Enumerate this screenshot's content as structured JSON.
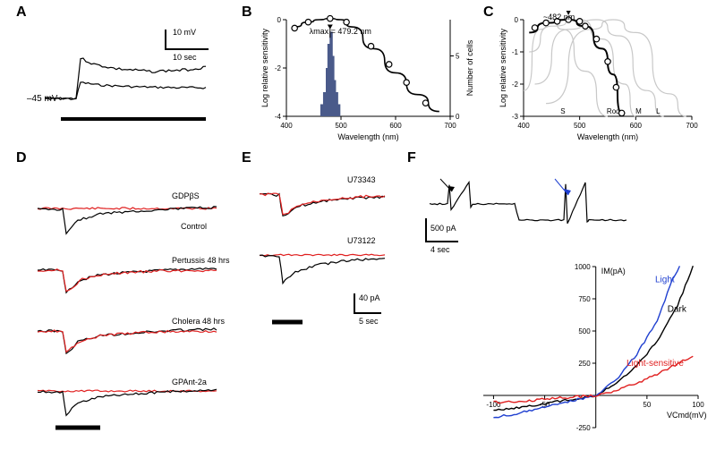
{
  "colors": {
    "black": "#000000",
    "red": "#e02020",
    "blue": "#2040d0",
    "gray": "#c8c8c8",
    "histbar": "#4a5a8a"
  },
  "labels": {
    "A": "A",
    "B": "B",
    "C": "C",
    "D": "D",
    "E": "E",
    "F": "F"
  },
  "panelA": {
    "resting": "–45 mV",
    "scale_v": "10 mV",
    "scale_t": "10 sec",
    "scale_bar_len": 48
  },
  "panelB": {
    "xlabel": "Wavelength (nm)",
    "ylabel_left": "Log relative sensitivity",
    "ylabel_right": "Number of cells",
    "lambda_text": "λmax = 479.2 nm",
    "xlim": [
      400,
      700
    ],
    "xticks": [
      400,
      500,
      600,
      700
    ],
    "ylim_left": [
      -4,
      0
    ],
    "yticks_left": [
      0,
      -2,
      -4
    ],
    "ylim_right": [
      0,
      8
    ],
    "yticks_right": [
      0,
      5
    ],
    "curve": [
      [
        415,
        -0.3
      ],
      [
        440,
        -0.1
      ],
      [
        460,
        0
      ],
      [
        480,
        0.05
      ],
      [
        500,
        0
      ],
      [
        520,
        -0.3
      ],
      [
        560,
        -1.2
      ],
      [
        600,
        -2.2
      ],
      [
        640,
        -3.1
      ],
      [
        680,
        -3.8
      ]
    ],
    "points": [
      [
        415,
        -0.35
      ],
      [
        440,
        -0.1
      ],
      [
        480,
        0.05
      ],
      [
        510,
        -0.1
      ],
      [
        555,
        -1.1
      ],
      [
        588,
        -1.85
      ],
      [
        620,
        -2.6
      ],
      [
        655,
        -3.45
      ]
    ],
    "hist_bins": [
      [
        465,
        1
      ],
      [
        470,
        2
      ],
      [
        475,
        4
      ],
      [
        478,
        6
      ],
      [
        482,
        7
      ],
      [
        485,
        5
      ],
      [
        488,
        3
      ],
      [
        492,
        2
      ],
      [
        496,
        1
      ]
    ]
  },
  "panelC": {
    "xlabel": "Wavelength (nm)",
    "ylabel": "Log relative sensitivity",
    "peak_text": "~482 nm",
    "xlim": [
      400,
      700
    ],
    "xticks": [
      400,
      500,
      600,
      700
    ],
    "ylim": [
      -3,
      0
    ],
    "yticks": [
      0,
      -1,
      -2,
      -3
    ],
    "templates": {
      "S": [
        [
          400,
          -2.2
        ],
        [
          430,
          -0.3
        ],
        [
          450,
          0
        ],
        [
          470,
          -0.3
        ],
        [
          510,
          -1.6
        ],
        [
          550,
          -3
        ]
      ],
      "Rod": [
        [
          410,
          -1
        ],
        [
          450,
          -0.2
        ],
        [
          500,
          0
        ],
        [
          540,
          -0.6
        ],
        [
          580,
          -2
        ],
        [
          600,
          -3
        ]
      ],
      "M": [
        [
          420,
          -2
        ],
        [
          480,
          -0.3
        ],
        [
          530,
          0
        ],
        [
          570,
          -0.5
        ],
        [
          620,
          -2.2
        ],
        [
          650,
          -3
        ]
      ],
      "L": [
        [
          440,
          -2.6
        ],
        [
          520,
          -0.3
        ],
        [
          560,
          0
        ],
        [
          600,
          -0.4
        ],
        [
          660,
          -2.3
        ],
        [
          690,
          -3
        ]
      ]
    },
    "data_points": [
      [
        420,
        -0.25
      ],
      [
        440,
        -0.1
      ],
      [
        460,
        -0.05
      ],
      [
        480,
        0
      ],
      [
        500,
        -0.05
      ],
      [
        510,
        -0.2
      ],
      [
        530,
        -0.6
      ],
      [
        550,
        -1.3
      ],
      [
        565,
        -2.1
      ],
      [
        575,
        -2.9
      ]
    ],
    "data_curve": [
      [
        410,
        -0.4
      ],
      [
        440,
        -0.1
      ],
      [
        480,
        0
      ],
      [
        510,
        -0.2
      ],
      [
        540,
        -0.9
      ],
      [
        560,
        -1.7
      ],
      [
        575,
        -2.9
      ]
    ],
    "bottom_labels": {
      "S": 470,
      "Rod": 560,
      "M": 605,
      "L": 640
    }
  },
  "panelD": {
    "traces": [
      {
        "label": "GDPβS",
        "ctrl": "Control",
        "red": true
      },
      {
        "label": "Pertussis 48 hrs",
        "red": true,
        "only": "red"
      },
      {
        "label": "Cholera 48 hrs",
        "red": true,
        "only": "red"
      },
      {
        "label": "GPAnt-2a",
        "red": true
      }
    ],
    "stim_bar_len": 50
  },
  "panelE": {
    "traces": [
      {
        "label": "U73343"
      },
      {
        "label": "U73122"
      }
    ],
    "scale_v": "40 pA",
    "scale_t": "5 sec",
    "stim_bar_len": 34
  },
  "panelF": {
    "scale_i": "500 pA",
    "scale_t": "4 sec",
    "iv": {
      "xlabel": "VCmd(mV)",
      "ylabel": "IM(pA)",
      "xlim": [
        -110,
        100
      ],
      "xticks": [
        -100,
        -50,
        50,
        100
      ],
      "ylim": [
        -250,
        1000
      ],
      "yticks": [
        -250,
        250,
        500,
        750,
        1000
      ],
      "dark_label": "Dark",
      "light_label": "Light",
      "diff_label": "Light-sensitive",
      "dark_curve": [
        [
          -100,
          -120
        ],
        [
          -80,
          -100
        ],
        [
          -60,
          -75
        ],
        [
          -40,
          -50
        ],
        [
          -20,
          -25
        ],
        [
          0,
          0
        ],
        [
          20,
          90
        ],
        [
          40,
          230
        ],
        [
          60,
          420
        ],
        [
          80,
          700
        ],
        [
          95,
          1000
        ]
      ],
      "light_curve": [
        [
          -100,
          -170
        ],
        [
          -80,
          -145
        ],
        [
          -60,
          -110
        ],
        [
          -40,
          -70
        ],
        [
          -20,
          -35
        ],
        [
          0,
          0
        ],
        [
          20,
          120
        ],
        [
          40,
          320
        ],
        [
          60,
          580
        ],
        [
          75,
          900
        ],
        [
          82,
          1000
        ]
      ],
      "diff_curve": [
        [
          -100,
          -55
        ],
        [
          -80,
          -48
        ],
        [
          -60,
          -38
        ],
        [
          -40,
          -22
        ],
        [
          -20,
          -10
        ],
        [
          0,
          0
        ],
        [
          20,
          35
        ],
        [
          40,
          95
        ],
        [
          60,
          165
        ],
        [
          80,
          245
        ],
        [
          95,
          310
        ]
      ]
    }
  }
}
